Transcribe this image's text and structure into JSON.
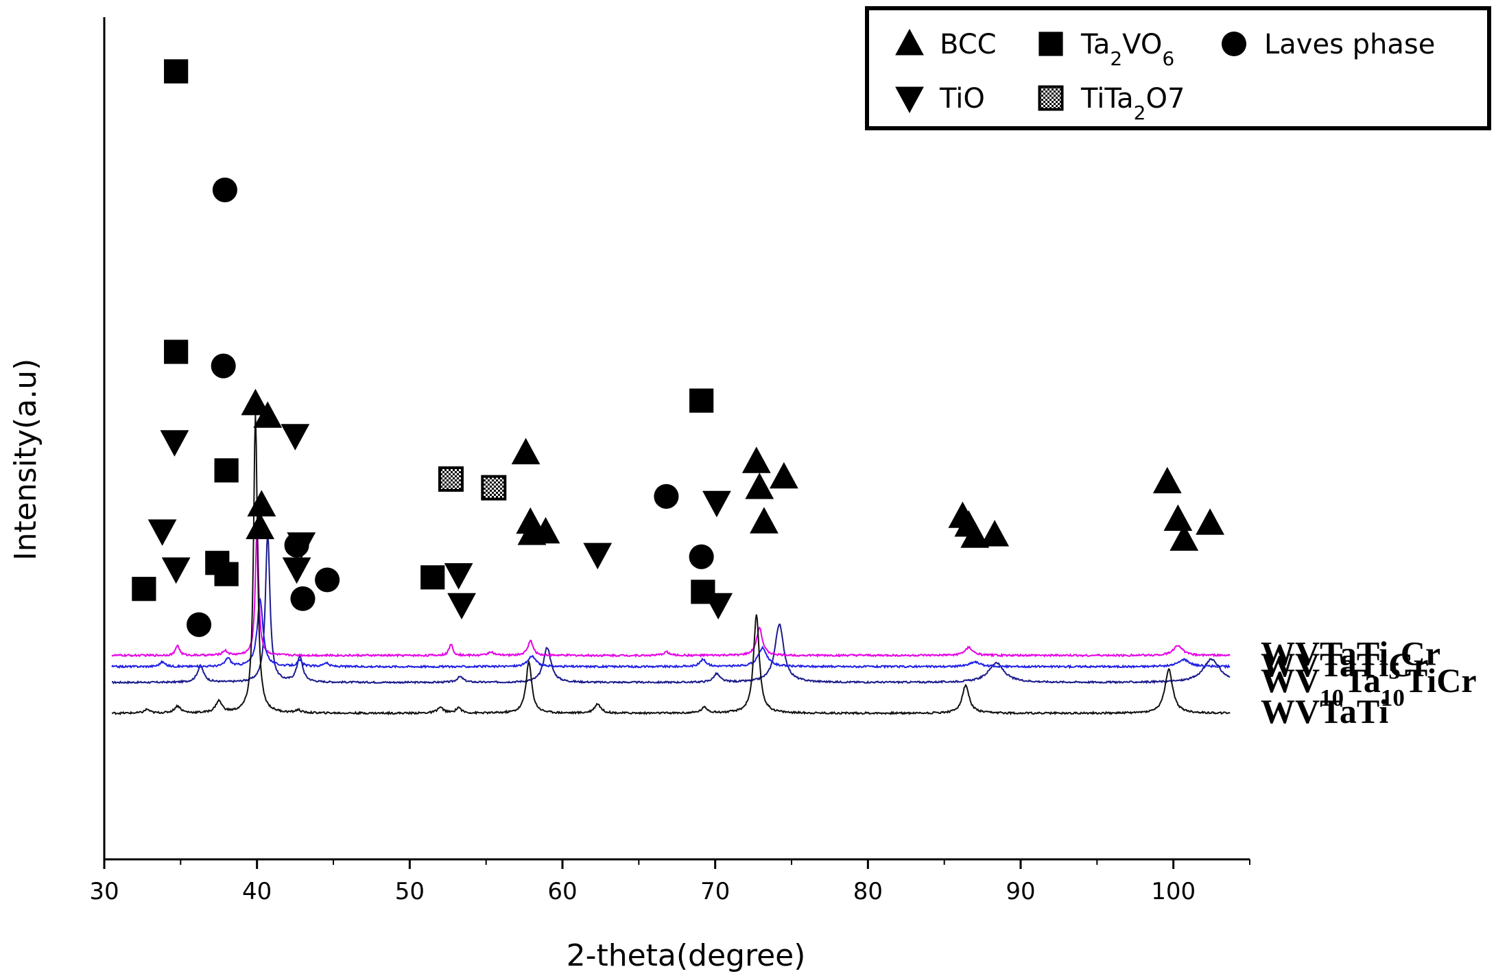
{
  "chart_data": {
    "type": "line",
    "title": "",
    "xlabel": "2-theta(degree)",
    "ylabel": "Intensity(a.u)",
    "xlim": [
      30,
      105
    ],
    "x_ticks": [
      30,
      40,
      50,
      60,
      70,
      80,
      90,
      100
    ],
    "x_tick_labels": [
      "30",
      "40",
      "50",
      "60",
      "70",
      "80",
      "90",
      "100"
    ],
    "y_ticks": "none",
    "grid": false,
    "legend": {
      "position": "top-right",
      "entries": [
        {
          "marker": "triangle-up",
          "label": "BCC"
        },
        {
          "marker": "triangle-down",
          "label": "TiO"
        },
        {
          "marker": "square",
          "label": "Ta2VO6",
          "parts": [
            [
              "Ta",
              false
            ],
            [
              "2",
              true
            ],
            [
              "VO",
              false
            ],
            [
              "6",
              true
            ]
          ]
        },
        {
          "marker": "checker",
          "label": "TiTa2O7",
          "parts": [
            [
              "TiTa",
              false
            ],
            [
              "2",
              true
            ],
            [
              "O",
              false
            ],
            [
              "7",
              false
            ]
          ]
        },
        {
          "marker": "circle",
          "label": "Laves phase"
        }
      ]
    },
    "series": [
      {
        "name": "WV10Ta10TiCr",
        "label_parts": [
          [
            "WV",
            false
          ],
          [
            "10",
            true
          ],
          [
            "Ta",
            false
          ],
          [
            "10",
            true
          ],
          [
            "TiCr",
            false
          ]
        ],
        "color": "#1a1a8c",
        "baseline": 0.66,
        "noise": 0.018,
        "peaks": [
          [
            36.3,
            0.35,
            0.5
          ],
          [
            40.7,
            3.2,
            0.35
          ],
          [
            42.8,
            0.55,
            0.45
          ],
          [
            53.3,
            0.12,
            0.5
          ],
          [
            59.0,
            0.75,
            0.6
          ],
          [
            70.1,
            0.18,
            0.5
          ],
          [
            74.2,
            1.25,
            0.7
          ],
          [
            88.4,
            0.42,
            1.2
          ],
          [
            102.5,
            0.5,
            1.3
          ]
        ],
        "markers": [
          [
            36.2,
            0.2,
            "circle"
          ],
          [
            40.7,
            0.92,
            "triangle-up"
          ],
          [
            42.9,
            0.48,
            "triangle-down"
          ],
          [
            43.0,
            0.29,
            "circle"
          ],
          [
            53.4,
            0.27,
            "triangle-down"
          ],
          [
            58.9,
            0.52,
            "triangle-up"
          ],
          [
            70.2,
            0.27,
            "triangle-down"
          ],
          [
            74.5,
            0.71,
            "triangle-up"
          ],
          [
            88.3,
            0.51,
            "triangle-up"
          ],
          [
            102.4,
            0.55,
            "triangle-up"
          ]
        ]
      },
      {
        "name": "WVTaTi5Cr",
        "label_parts": [
          [
            "WVTaTi",
            false
          ],
          [
            "5",
            true
          ],
          [
            "Cr",
            false
          ]
        ],
        "color": "#e600e6",
        "baseline": 1.24,
        "noise": 0.02,
        "peaks": [
          [
            34.8,
            0.22,
            0.3
          ],
          [
            37.9,
            0.1,
            0.4
          ],
          [
            40.0,
            2.8,
            0.25
          ],
          [
            52.7,
            0.24,
            0.3
          ],
          [
            55.3,
            0.08,
            0.4
          ],
          [
            57.9,
            0.32,
            0.4
          ],
          [
            66.8,
            0.08,
            0.4
          ],
          [
            72.9,
            0.6,
            0.45
          ],
          [
            86.6,
            0.17,
            0.6
          ],
          [
            100.3,
            0.22,
            0.7
          ]
        ],
        "markers": [
          [
            34.7,
            2.02,
            "square"
          ],
          [
            34.6,
            0.74,
            "triangle-down"
          ],
          [
            37.9,
            1.61,
            "circle"
          ],
          [
            38.0,
            0.64,
            "square"
          ],
          [
            40.3,
            0.52,
            "triangle-up"
          ],
          [
            52.7,
            0.61,
            "checker"
          ],
          [
            55.5,
            0.58,
            "checker"
          ],
          [
            57.9,
            0.46,
            "triangle-up"
          ],
          [
            66.8,
            0.55,
            "circle"
          ],
          [
            70.1,
            0.53,
            "triangle-down"
          ],
          [
            72.9,
            0.58,
            "triangle-up"
          ],
          [
            86.6,
            0.45,
            "triangle-up"
          ],
          [
            100.3,
            0.47,
            "triangle-up"
          ]
        ]
      },
      {
        "name": "WVTaTiCr",
        "label_parts": [
          [
            "WVTaTiCr",
            false
          ]
        ],
        "color": "#1f1fe6",
        "baseline": 1.0,
        "noise": 0.02,
        "peaks": [
          [
            33.8,
            0.1,
            0.4
          ],
          [
            38.1,
            0.18,
            0.4
          ],
          [
            40.2,
            1.45,
            0.45
          ],
          [
            42.8,
            0.12,
            0.4
          ],
          [
            44.5,
            0.08,
            0.4
          ],
          [
            58.0,
            0.23,
            0.6
          ],
          [
            69.2,
            0.15,
            0.5
          ],
          [
            73.1,
            0.4,
            0.7
          ],
          [
            87.0,
            0.1,
            0.8
          ],
          [
            100.7,
            0.15,
            0.9
          ]
        ],
        "markers": [
          [
            33.8,
            0.47,
            "triangle-down"
          ],
          [
            37.8,
            1.04,
            "circle"
          ],
          [
            38.0,
            0.32,
            "square"
          ],
          [
            40.2,
            0.48,
            "triangle-up"
          ],
          [
            42.5,
            0.8,
            "triangle-down"
          ],
          [
            42.6,
            0.42,
            "circle"
          ],
          [
            44.6,
            0.3,
            "circle"
          ],
          [
            58.0,
            0.46,
            "triangle-up"
          ],
          [
            69.1,
            0.92,
            "square"
          ],
          [
            69.1,
            0.38,
            "circle"
          ],
          [
            73.2,
            0.5,
            "triangle-up"
          ],
          [
            87.0,
            0.45,
            "triangle-up"
          ],
          [
            100.7,
            0.44,
            "triangle-up"
          ]
        ]
      },
      {
        "name": "WVTaTi",
        "label_parts": [
          [
            "WVTaTi",
            false
          ]
        ],
        "color": "#111111",
        "baseline": 0.0,
        "noise": 0.02,
        "peaks": [
          [
            32.8,
            0.08,
            0.4
          ],
          [
            34.8,
            0.15,
            0.5
          ],
          [
            37.5,
            0.25,
            0.5
          ],
          [
            39.9,
            6.4,
            0.3
          ],
          [
            42.7,
            0.06,
            0.4
          ],
          [
            52.0,
            0.12,
            0.5
          ],
          [
            53.2,
            0.12,
            0.4
          ],
          [
            57.8,
            1.1,
            0.45
          ],
          [
            62.3,
            0.2,
            0.5
          ],
          [
            69.3,
            0.12,
            0.5
          ],
          [
            72.7,
            2.1,
            0.45
          ],
          [
            86.4,
            0.6,
            0.55
          ],
          [
            99.7,
            0.95,
            0.6
          ]
        ],
        "markers": [
          [
            32.6,
            0.43,
            "square"
          ],
          [
            34.7,
            1.25,
            "square"
          ],
          [
            34.7,
            0.5,
            "triangle-down"
          ],
          [
            37.4,
            0.52,
            "square"
          ],
          [
            39.9,
            1.07,
            "triangle-up"
          ],
          [
            42.6,
            0.5,
            "triangle-down"
          ],
          [
            51.5,
            0.47,
            "square"
          ],
          [
            53.2,
            0.48,
            "triangle-down"
          ],
          [
            57.6,
            0.9,
            "triangle-up"
          ],
          [
            62.3,
            0.55,
            "triangle-down"
          ],
          [
            69.2,
            0.42,
            "square"
          ],
          [
            72.7,
            0.87,
            "triangle-up"
          ],
          [
            86.2,
            0.68,
            "triangle-up"
          ],
          [
            99.6,
            0.8,
            "triangle-up"
          ]
        ]
      }
    ]
  }
}
